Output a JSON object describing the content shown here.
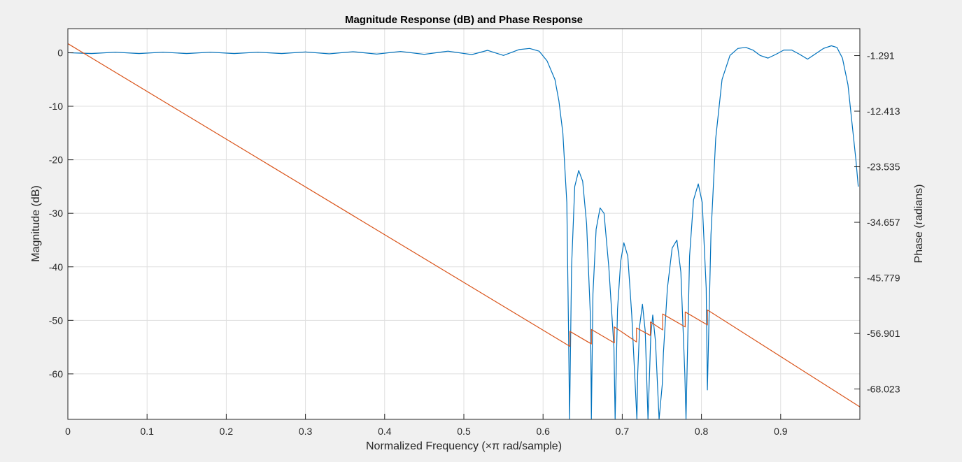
{
  "chart_data": {
    "type": "line",
    "title": "Magnitude Response (dB) and Phase Response",
    "xlabel": "Normalized  Frequency  (×π  rad/sample)",
    "ylabel_left": "Magnitude (dB)",
    "ylabel_right": "Phase (radians)",
    "xlim": [
      0,
      1
    ],
    "ylim_left": [
      -68.5,
      4.5
    ],
    "ylim_right": [
      -74.1,
      4.1
    ],
    "x_ticks": [
      0,
      0.1,
      0.2,
      0.3,
      0.4,
      0.5,
      0.6,
      0.7,
      0.8,
      0.9
    ],
    "x_tick_labels": [
      "0",
      "0.1",
      "0.2",
      "0.3",
      "0.4",
      "0.5",
      "0.6",
      "0.7",
      "0.8",
      "0.9"
    ],
    "y_left_ticks": [
      0,
      -10,
      -20,
      -30,
      -40,
      -50,
      -60
    ],
    "y_left_tick_labels": [
      "0",
      "-10",
      "-20",
      "-30",
      "-40",
      "-50",
      "-60"
    ],
    "y_right_ticks": [
      -1.291,
      -12.413,
      -23.535,
      -34.657,
      -45.779,
      -56.901,
      -68.023
    ],
    "y_right_tick_labels": [
      "-1.291",
      "-12.413",
      "-23.535",
      "-34.657",
      "-45.779",
      "-56.901",
      "-68.023"
    ],
    "grid": true,
    "series": [
      {
        "axis": "left",
        "color": "#0072bd",
        "x": [
          0,
          0.03,
          0.06,
          0.09,
          0.12,
          0.15,
          0.18,
          0.21,
          0.24,
          0.27,
          0.3,
          0.33,
          0.36,
          0.39,
          0.42,
          0.45,
          0.48,
          0.51,
          0.53,
          0.55,
          0.57,
          0.583,
          0.595,
          0.605,
          0.615,
          0.62,
          0.625,
          0.63,
          0.632,
          0.6335,
          0.636,
          0.64,
          0.645,
          0.65,
          0.655,
          0.66,
          0.661,
          0.663,
          0.667,
          0.672,
          0.677,
          0.683,
          0.6895,
          0.691,
          0.694,
          0.698,
          0.702,
          0.707,
          0.712,
          0.7185,
          0.7195,
          0.722,
          0.7255,
          0.729,
          0.7325,
          0.736,
          0.7385,
          0.742,
          0.7465,
          0.7505,
          0.752,
          0.757,
          0.763,
          0.769,
          0.774,
          0.779,
          0.7805,
          0.785,
          0.79,
          0.796,
          0.801,
          0.806,
          0.8075,
          0.812,
          0.818,
          0.826,
          0.836,
          0.846,
          0.856,
          0.865,
          0.874,
          0.884,
          0.894,
          0.904,
          0.914,
          0.924,
          0.934,
          0.944,
          0.954,
          0.964,
          0.971,
          0.978,
          0.985,
          0.99,
          0.995,
          0.998
        ],
        "y": [
          0,
          -0.15,
          0.1,
          -0.15,
          0.1,
          -0.15,
          0.1,
          -0.15,
          0.1,
          -0.15,
          0.15,
          -0.2,
          0.2,
          -0.25,
          0.25,
          -0.3,
          0.3,
          -0.35,
          0.45,
          -0.5,
          0.6,
          0.8,
          0.3,
          -1.5,
          -5,
          -9,
          -15,
          -28,
          -50,
          -68.5,
          -40,
          -25,
          -22,
          -24,
          -32,
          -50,
          -68.5,
          -45,
          -33,
          -29,
          -30,
          -40,
          -55,
          -68.5,
          -48,
          -39,
          -35.5,
          -38,
          -49,
          -68.5,
          -60,
          -51,
          -47,
          -52,
          -68.5,
          -53,
          -49,
          -54,
          -68.5,
          -62,
          -56,
          -44,
          -36.5,
          -35,
          -41,
          -60,
          -68.5,
          -38,
          -27.5,
          -24.5,
          -28,
          -44,
          -63,
          -34,
          -16,
          -5,
          -0.5,
          0.8,
          1.0,
          0.5,
          -0.5,
          -1.0,
          -0.3,
          0.5,
          0.5,
          -0.3,
          -1.2,
          -0.2,
          0.8,
          1.3,
          1.0,
          -1,
          -6,
          -13,
          -20,
          -25
        ]
      },
      {
        "axis": "right",
        "color": "#d95319",
        "x": [
          0,
          0.634,
          0.634,
          0.661,
          0.661,
          0.69,
          0.69,
          0.718,
          0.718,
          0.7355,
          0.7355,
          0.751,
          0.751,
          0.7795,
          0.7795,
          0.8075,
          0.8075,
          1.0
        ],
        "y": [
          1.1,
          -59.5,
          -56.5,
          -59.0,
          -56.1,
          -58.8,
          -55.6,
          -58.6,
          -55.8,
          -57.3,
          -54.6,
          -56.2,
          -53.0,
          -55.6,
          -52.6,
          -55.2,
          -52.2,
          -71.6
        ]
      }
    ]
  }
}
